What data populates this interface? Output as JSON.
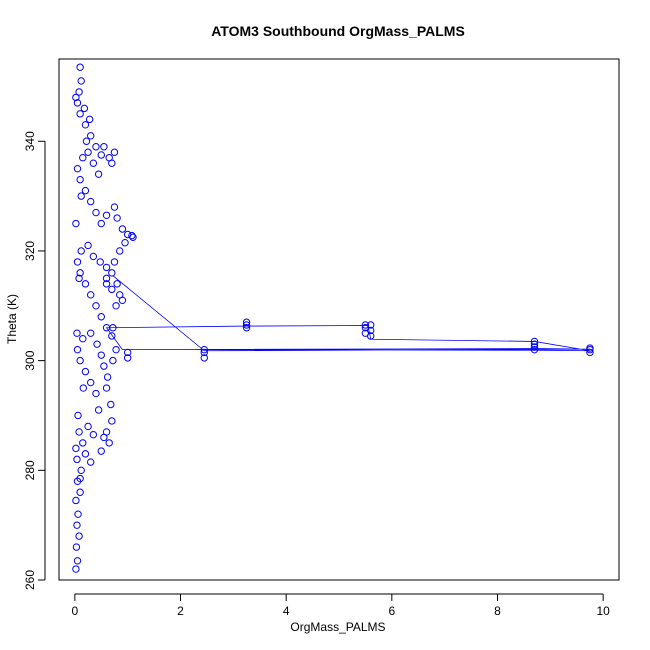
{
  "chart_data": {
    "type": "scatter",
    "title": "ATOM3 Southbound OrgMass_PALMS",
    "xlabel": "OrgMass_PALMS",
    "ylabel": "Theta (K)",
    "xlim": [
      -0.3,
      10.3
    ],
    "ylim": [
      260,
      355
    ],
    "xticks": [
      0,
      2,
      4,
      6,
      8,
      10
    ],
    "yticks": [
      260,
      280,
      300,
      320,
      340
    ],
    "grid": false,
    "marker": "open-circle",
    "connected_lines": true,
    "color": "#0000ff",
    "series": [
      {
        "points": [
          [
            0.02,
            262
          ],
          [
            0.05,
            263.5
          ],
          [
            0.03,
            266
          ],
          [
            0.08,
            268
          ],
          [
            0.04,
            270
          ],
          [
            0.06,
            272
          ],
          [
            0.02,
            274.5
          ],
          [
            0.1,
            276
          ],
          [
            0.05,
            278
          ],
          [
            0.12,
            280
          ],
          [
            0.04,
            282
          ],
          [
            0.2,
            283
          ],
          [
            0.3,
            281.5
          ],
          [
            0.15,
            285
          ],
          [
            0.08,
            287
          ],
          [
            0.25,
            288
          ],
          [
            0.35,
            286.5
          ],
          [
            0.5,
            283.5
          ],
          [
            0.55,
            286
          ],
          [
            0.6,
            287
          ],
          [
            0.65,
            285
          ],
          [
            0.7,
            289
          ],
          [
            0.68,
            292
          ],
          [
            0.6,
            295
          ],
          [
            0.45,
            291
          ],
          [
            0.4,
            294
          ],
          [
            0.3,
            296
          ],
          [
            0.2,
            298
          ],
          [
            0.1,
            300
          ],
          [
            0.05,
            302
          ],
          [
            0.15,
            304
          ],
          [
            0.3,
            305
          ],
          [
            0.42,
            303
          ],
          [
            0.5,
            301
          ],
          [
            0.55,
            299
          ],
          [
            0.62,
            297
          ],
          [
            0.72,
            300
          ],
          [
            0.78,
            302
          ],
          [
            0.7,
            304.5
          ],
          [
            0.6,
            306
          ],
          [
            0.5,
            308
          ],
          [
            0.4,
            310
          ],
          [
            0.3,
            312
          ],
          [
            0.2,
            314
          ],
          [
            0.1,
            316
          ],
          [
            0.05,
            318
          ],
          [
            0.12,
            320
          ],
          [
            0.25,
            321
          ],
          [
            0.35,
            319
          ],
          [
            0.48,
            318
          ],
          [
            0.6,
            317
          ],
          [
            0.7,
            316
          ],
          [
            0.8,
            314
          ],
          [
            0.85,
            312
          ],
          [
            0.78,
            310
          ],
          [
            0.7,
            313
          ],
          [
            0.6,
            315
          ],
          [
            0.75,
            318
          ],
          [
            0.85,
            320
          ],
          [
            0.95,
            321.5
          ],
          [
            1.0,
            323
          ],
          [
            1.08,
            322.8
          ],
          [
            1.1,
            322.5
          ],
          [
            0.9,
            324
          ],
          [
            0.8,
            326
          ],
          [
            0.75,
            328
          ],
          [
            0.6,
            326.5
          ],
          [
            0.5,
            325
          ],
          [
            0.4,
            327
          ],
          [
            0.3,
            329
          ],
          [
            0.2,
            331
          ],
          [
            0.1,
            333
          ],
          [
            0.05,
            335
          ],
          [
            0.15,
            337
          ],
          [
            0.25,
            338
          ],
          [
            0.35,
            336
          ],
          [
            0.45,
            334
          ],
          [
            0.5,
            337.5
          ],
          [
            0.55,
            339
          ],
          [
            0.65,
            337
          ],
          [
            0.75,
            338
          ],
          [
            0.7,
            336
          ],
          [
            0.4,
            339
          ],
          [
            0.3,
            341
          ],
          [
            0.2,
            343
          ],
          [
            0.1,
            345
          ],
          [
            0.05,
            347
          ],
          [
            0.08,
            349
          ],
          [
            0.12,
            351
          ],
          [
            0.1,
            353.5
          ],
          [
            0.02,
            348
          ],
          [
            0.18,
            346
          ],
          [
            0.28,
            344
          ],
          [
            0.22,
            340
          ],
          [
            0.12,
            330
          ],
          [
            0.02,
            325
          ],
          [
            0.08,
            315
          ],
          [
            0.04,
            305
          ],
          [
            0.16,
            295
          ],
          [
            0.06,
            290
          ],
          [
            0.02,
            284
          ],
          [
            0.1,
            278.5
          ],
          [
            0.72,
            306
          ],
          [
            1.0,
            300.5
          ],
          [
            1.0,
            301.5
          ],
          [
            0.6,
            314
          ],
          [
            0.9,
            311
          ],
          [
            2.45,
            300.5
          ],
          [
            2.45,
            301.5
          ],
          [
            2.45,
            302
          ],
          [
            3.25,
            306
          ],
          [
            3.25,
            306.5
          ],
          [
            3.25,
            307
          ],
          [
            5.5,
            305
          ],
          [
            5.5,
            306
          ],
          [
            5.5,
            306.5
          ],
          [
            5.6,
            305.5
          ],
          [
            5.6,
            304.5
          ],
          [
            5.6,
            306.5
          ],
          [
            8.7,
            302
          ],
          [
            8.7,
            303
          ],
          [
            8.7,
            303.5
          ],
          [
            8.7,
            302.5
          ],
          [
            9.75,
            301.5
          ],
          [
            9.75,
            302
          ],
          [
            9.75,
            302.3
          ]
        ],
        "path": [
          [
            0.72,
            315.5
          ],
          [
            2.45,
            301.8
          ],
          [
            9.75,
            302.1
          ],
          [
            8.7,
            302.2
          ],
          [
            0.9,
            302
          ],
          [
            0.6,
            306
          ],
          [
            3.25,
            306.3
          ],
          [
            5.55,
            306.4
          ],
          [
            5.6,
            303.9
          ],
          [
            8.7,
            303.5
          ],
          [
            9.75,
            301.8
          ],
          [
            8.7,
            301.9
          ],
          [
            2.45,
            302
          ]
        ]
      }
    ]
  }
}
